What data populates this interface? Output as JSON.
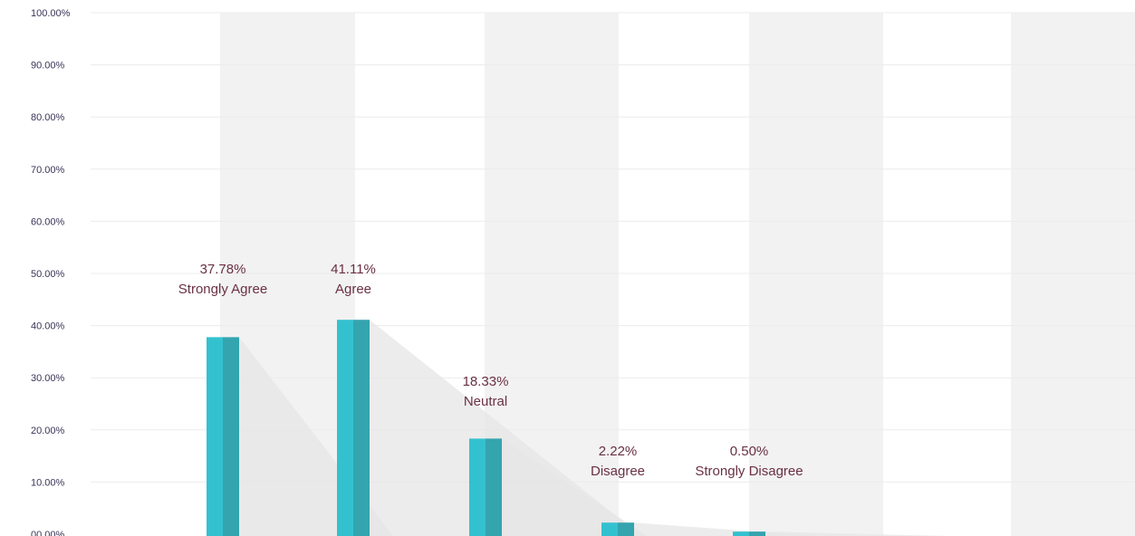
{
  "chart_data": {
    "type": "bar",
    "title": "",
    "xlabel": "",
    "ylabel": "",
    "ylim": [
      0,
      100
    ],
    "y_ticks": [
      "00.00%",
      "10.00%",
      "20.00%",
      "30.00%",
      "40.00%",
      "50.00%",
      "60.00%",
      "70.00%",
      "80.00%",
      "90.00%",
      "100.00%"
    ],
    "categories": [
      "Strongly Agree",
      "Agree",
      "Neutral",
      "Disagree",
      "Strongly Disagree"
    ],
    "values": [
      37.78,
      41.11,
      18.33,
      2.22,
      0.5
    ],
    "value_labels": [
      "37.78%",
      "41.11%",
      "18.33%",
      "2.22%",
      "0.50%"
    ],
    "grid": true,
    "colors": {
      "bar_light": "#34c1cf",
      "bar_dark": "#34a4ae",
      "shadow": "#e6e6e6",
      "band": "#f2f2f2",
      "label": "#6a3044",
      "tick": "#3b3357"
    }
  }
}
